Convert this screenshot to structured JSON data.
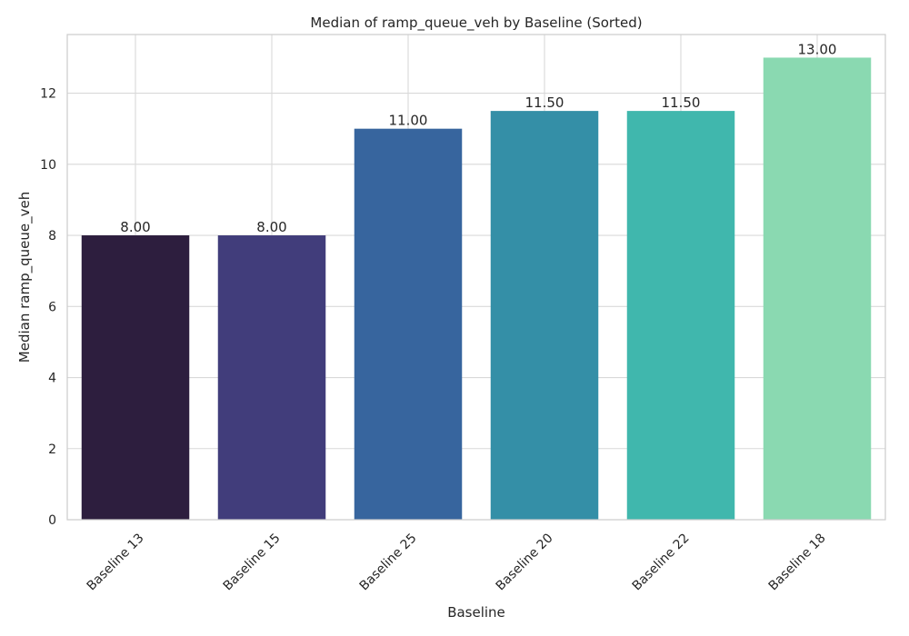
{
  "chart_data": {
    "type": "bar",
    "title": "Median of ramp_queue_veh by Baseline (Sorted)",
    "xlabel": "Baseline",
    "ylabel": "Median ramp_queue_veh",
    "categories": [
      "Baseline 13",
      "Baseline 15",
      "Baseline 25",
      "Baseline 20",
      "Baseline 22",
      "Baseline 18"
    ],
    "values": [
      8.0,
      8.0,
      11.0,
      11.5,
      11.5,
      13.0
    ],
    "value_labels": [
      "8.00",
      "8.00",
      "11.00",
      "11.50",
      "11.50",
      "13.00"
    ],
    "colors": [
      "#2d1e3e",
      "#413d7b",
      "#37659e",
      "#348fa7",
      "#40b7ad",
      "#8ad9b1"
    ],
    "ylim": [
      0,
      13.65
    ],
    "yticks": [
      0,
      2,
      4,
      6,
      8,
      10,
      12
    ],
    "grid": true,
    "legend": "none"
  }
}
